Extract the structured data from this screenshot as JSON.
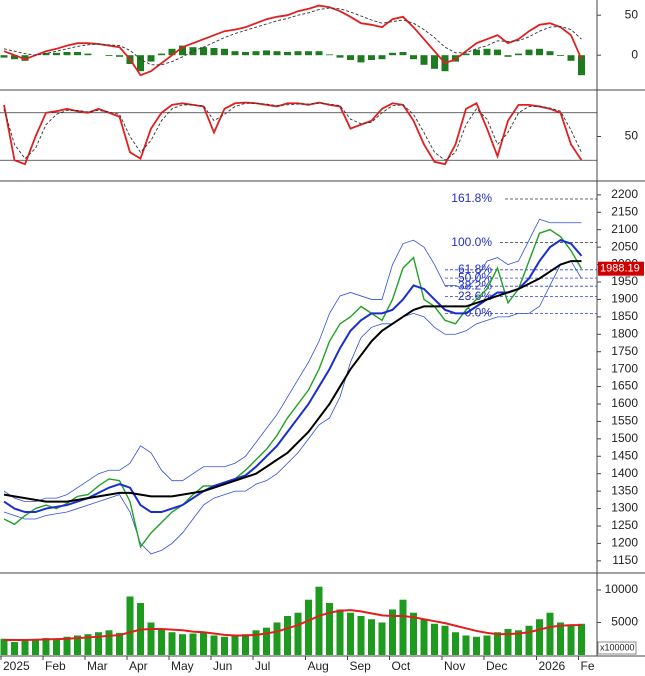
{
  "chart_data": [
    {
      "type": "line",
      "ylim": [
        -41,
        69
      ],
      "yticks": [
        0,
        50
      ],
      "series": [
        {
          "type": "bar",
          "color": "#1e7a1e",
          "values": [
            -3,
            -5,
            -7,
            0,
            3,
            3,
            4,
            4,
            2,
            0,
            -1,
            -2,
            -11,
            -20,
            -8,
            2,
            8,
            12,
            10,
            10,
            9,
            8,
            5,
            4,
            5,
            6,
            5,
            4,
            5,
            5,
            5,
            1,
            -3,
            -6,
            -9,
            -6,
            -5,
            3,
            4,
            -5,
            -12,
            -17,
            -20,
            -8,
            2,
            7,
            8,
            7,
            -2,
            2,
            7,
            8,
            5,
            -1,
            -7,
            -25
          ]
        },
        {
          "type": "line",
          "color": "#e02020",
          "values": [
            5,
            0,
            -5,
            0,
            5,
            8,
            12,
            15,
            15,
            14,
            12,
            10,
            -5,
            -25,
            -20,
            -10,
            0,
            10,
            15,
            20,
            25,
            30,
            32,
            35,
            40,
            45,
            48,
            50,
            55,
            58,
            62,
            60,
            55,
            48,
            40,
            38,
            35,
            45,
            48,
            35,
            20,
            5,
            -10,
            -5,
            5,
            15,
            20,
            25,
            15,
            20,
            30,
            38,
            40,
            35,
            25,
            -5
          ]
        },
        {
          "type": "line",
          "dash": true,
          "color": "#333333",
          "values": [
            8,
            5,
            2,
            0,
            2,
            5,
            8,
            11,
            13,
            14,
            13,
            12,
            6,
            -5,
            -12,
            -12,
            -8,
            -2,
            5,
            10,
            16,
            22,
            27,
            31,
            35,
            39,
            43,
            46,
            50,
            53,
            57,
            59,
            58,
            54,
            49,
            44,
            40,
            42,
            44,
            40,
            32,
            22,
            10,
            3,
            3,
            8,
            12,
            18,
            17,
            18,
            23,
            30,
            35,
            36,
            32,
            20
          ]
        }
      ]
    },
    {
      "type": "line",
      "ylim": [
        -5,
        105
      ],
      "yticks": [
        50
      ],
      "ref_lines": [
        80,
        20
      ],
      "series": [
        {
          "type": "line",
          "color": "#e02020",
          "values": [
            90,
            20,
            15,
            50,
            80,
            82,
            85,
            82,
            80,
            85,
            80,
            75,
            30,
            22,
            60,
            80,
            90,
            92,
            90,
            88,
            55,
            85,
            92,
            93,
            92,
            90,
            88,
            92,
            92,
            90,
            93,
            90,
            88,
            60,
            65,
            70,
            85,
            92,
            90,
            70,
            40,
            18,
            15,
            40,
            85,
            92,
            60,
            25,
            70,
            90,
            90,
            88,
            85,
            80,
            40,
            20
          ]
        },
        {
          "type": "line",
          "dash": true,
          "color": "#333333",
          "values": [
            85,
            40,
            22,
            35,
            65,
            78,
            83,
            83,
            81,
            83,
            81,
            78,
            50,
            30,
            45,
            70,
            85,
            90,
            90,
            89,
            70,
            78,
            88,
            92,
            92,
            91,
            89,
            90,
            91,
            91,
            92,
            91,
            89,
            72,
            66,
            68,
            80,
            89,
            90,
            78,
            55,
            30,
            20,
            30,
            65,
            85,
            72,
            40,
            55,
            80,
            88,
            88,
            86,
            82,
            58,
            30
          ]
        }
      ]
    },
    {
      "type": "line",
      "ylim": [
        1118,
        2234
      ],
      "yticks": [
        1150,
        1200,
        1250,
        1300,
        1350,
        1400,
        1450,
        1500,
        1550,
        1600,
        1650,
        1700,
        1750,
        1800,
        1850,
        1900,
        1950,
        2000,
        2050,
        2100,
        2150,
        2200
      ],
      "last_price": 1988.19,
      "fib_levels": [
        {
          "label": "161.8%",
          "value": 2188
        },
        {
          "label": "100.0%",
          "value": 2063
        },
        {
          "label": "61.8%",
          "value": 1985
        },
        {
          "label": "50.0%",
          "value": 1961
        },
        {
          "label": "38.2%",
          "value": 1938
        },
        {
          "label": "23.6%",
          "value": 1908
        },
        {
          "label": "0.0%",
          "value": 1860
        }
      ],
      "series": [
        {
          "type": "line",
          "color": "#3050e0",
          "width": 0.8,
          "values": [
            1350,
            1330,
            1320,
            1320,
            1330,
            1330,
            1340,
            1360,
            1380,
            1400,
            1410,
            1410,
            1430,
            1480,
            1460,
            1410,
            1380,
            1380,
            1400,
            1420,
            1420,
            1420,
            1430,
            1450,
            1490,
            1530,
            1570,
            1620,
            1670,
            1720,
            1780,
            1860,
            1910,
            1920,
            1910,
            1900,
            1900,
            2000,
            2060,
            2070,
            2050,
            2000,
            1940,
            1940,
            1930,
            1960,
            2010,
            2020,
            2000,
            2010,
            2070,
            2130,
            2120,
            2120,
            2120,
            2120
          ]
        },
        {
          "type": "line",
          "color": "#3050e0",
          "width": 0.8,
          "values": [
            1290,
            1280,
            1270,
            1270,
            1280,
            1285,
            1290,
            1300,
            1310,
            1320,
            1330,
            1340,
            1290,
            1200,
            1170,
            1180,
            1200,
            1230,
            1270,
            1310,
            1330,
            1340,
            1350,
            1350,
            1370,
            1380,
            1400,
            1430,
            1460,
            1500,
            1540,
            1560,
            1620,
            1720,
            1790,
            1820,
            1830,
            1830,
            1850,
            1860,
            1850,
            1820,
            1800,
            1800,
            1810,
            1830,
            1840,
            1850,
            1850,
            1860,
            1860,
            1880,
            1940,
            2000,
            2010,
            1960
          ]
        },
        {
          "type": "line",
          "color": "#22a022",
          "width": 1.4,
          "values": [
            1270,
            1255,
            1280,
            1300,
            1310,
            1300,
            1315,
            1335,
            1340,
            1365,
            1385,
            1380,
            1320,
            1190,
            1230,
            1260,
            1290,
            1310,
            1340,
            1365,
            1365,
            1375,
            1385,
            1410,
            1440,
            1470,
            1510,
            1560,
            1600,
            1640,
            1700,
            1780,
            1830,
            1850,
            1880,
            1860,
            1840,
            1900,
            1990,
            2020,
            1900,
            1880,
            1840,
            1830,
            1870,
            1900,
            1930,
            1990,
            1890,
            1930,
            2010,
            2090,
            2100,
            2080,
            2040,
            1988
          ]
        },
        {
          "type": "line",
          "color": "#1a2ed0",
          "width": 2,
          "values": [
            1320,
            1300,
            1290,
            1290,
            1300,
            1305,
            1310,
            1320,
            1330,
            1345,
            1360,
            1370,
            1360,
            1310,
            1290,
            1290,
            1300,
            1310,
            1330,
            1350,
            1365,
            1375,
            1385,
            1395,
            1420,
            1450,
            1480,
            1520,
            1560,
            1600,
            1650,
            1700,
            1760,
            1810,
            1840,
            1860,
            1860,
            1870,
            1900,
            1940,
            1930,
            1900,
            1870,
            1860,
            1860,
            1880,
            1900,
            1920,
            1920,
            1930,
            1960,
            2010,
            2050,
            2070,
            2060,
            2025
          ]
        },
        {
          "type": "line",
          "color": "#000000",
          "width": 2,
          "values": [
            1340,
            1335,
            1330,
            1325,
            1320,
            1320,
            1320,
            1325,
            1330,
            1335,
            1340,
            1345,
            1345,
            1340,
            1335,
            1335,
            1335,
            1340,
            1345,
            1350,
            1360,
            1370,
            1380,
            1390,
            1400,
            1420,
            1440,
            1460,
            1490,
            1520,
            1560,
            1600,
            1650,
            1700,
            1740,
            1780,
            1810,
            1830,
            1850,
            1870,
            1880,
            1880,
            1880,
            1880,
            1880,
            1890,
            1900,
            1910,
            1920,
            1930,
            1945,
            1960,
            1980,
            2000,
            2010,
            2010
          ]
        }
      ]
    },
    {
      "type": "bar",
      "ylim": [
        0,
        12300
      ],
      "yticks": [
        5000,
        10000
      ],
      "unit_label": "x100000",
      "xticks": [
        {
          "value": 0,
          "label": "2025"
        },
        {
          "value": 4,
          "label": "Feb"
        },
        {
          "value": 8,
          "label": "Mar"
        },
        {
          "value": 12,
          "label": "Apr"
        },
        {
          "value": 16,
          "label": "May"
        },
        {
          "value": 20,
          "label": "Jun"
        },
        {
          "value": 24,
          "label": "Jul"
        },
        {
          "value": 29,
          "label": "Aug"
        },
        {
          "value": 33,
          "label": "Sep"
        },
        {
          "value": 37,
          "label": "Oct"
        },
        {
          "value": 42,
          "label": "Nov"
        },
        {
          "value": 46,
          "label": "Dec"
        },
        {
          "value": 51,
          "label": "2026"
        },
        {
          "value": 55,
          "label": "Fe"
        }
      ],
      "series": [
        {
          "type": "bar",
          "color": "#1e9a1e",
          "values": [
            2500,
            2000,
            2200,
            2400,
            2600,
            2300,
            2800,
            3000,
            3200,
            3500,
            3800,
            3400,
            9000,
            8000,
            5000,
            4000,
            3500,
            3200,
            3300,
            3600,
            3000,
            2800,
            3000,
            3200,
            3800,
            4200,
            5000,
            6000,
            6500,
            8500,
            10500,
            8000,
            7000,
            6500,
            6000,
            5500,
            5000,
            7000,
            8500,
            6500,
            5500,
            4800,
            4500,
            3500,
            3000,
            2800,
            3000,
            3500,
            4000,
            3800,
            4500,
            5500,
            6500,
            5000,
            4500,
            4800
          ]
        },
        {
          "type": "line",
          "color": "#e02020",
          "width": 2,
          "values": [
            2300,
            2300,
            2300,
            2350,
            2400,
            2450,
            2500,
            2600,
            2700,
            2800,
            2950,
            3050,
            3500,
            3900,
            4000,
            4000,
            3900,
            3800,
            3600,
            3500,
            3300,
            3100,
            3000,
            3000,
            3100,
            3300,
            3600,
            4100,
            4600,
            5300,
            6000,
            6500,
            6800,
            6900,
            6700,
            6400,
            6100,
            6000,
            6000,
            5800,
            5500,
            5200,
            4900,
            4500,
            4100,
            3700,
            3400,
            3200,
            3200,
            3300,
            3500,
            3900,
            4300,
            4500,
            4600,
            4600
          ]
        }
      ]
    }
  ]
}
